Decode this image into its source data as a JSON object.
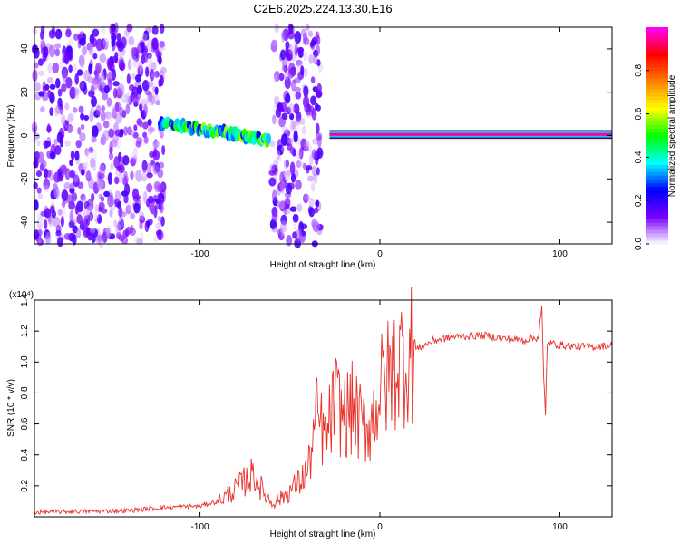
{
  "title": "C2E6.2025.224.13.30.E16",
  "chart_data": [
    {
      "type": "heatmap",
      "xlabel": "Height of straight line (km)",
      "ylabel": "Frequency (Hz)",
      "xlim": [
        -192,
        129
      ],
      "ylim": [
        -50,
        50
      ],
      "x_ticks": [
        -100,
        0,
        100
      ],
      "x_tick_labels": [
        "-100",
        "0",
        "100"
      ],
      "y_ticks": [
        -40,
        -20,
        0,
        20,
        40
      ],
      "y_tick_labels": [
        "-40",
        "-20",
        "0",
        "20",
        "40"
      ],
      "colorbar": {
        "label": "Normalized spectral amplitude",
        "range": [
          0,
          1
        ],
        "ticks": [
          0.0,
          0.2,
          0.4,
          0.6,
          0.8
        ],
        "tick_labels": [
          "0.0",
          "0.2",
          "0.4",
          "0.6",
          "0.8"
        ],
        "colors": [
          "#ffffff",
          "#7a00ff",
          "#0000ff",
          "#00ffff",
          "#00ff00",
          "#ffff00",
          "#ff8000",
          "#ff0000",
          "#ff00ff"
        ]
      },
      "features": [
        {
          "name": "noise",
          "x_range": [
            -192,
            -120
          ],
          "amplitude": 0.1
        },
        {
          "name": "noise",
          "x_range": [
            -60,
            -33
          ],
          "amplitude": 0.1
        },
        {
          "name": "signal band",
          "x_range": [
            -122,
            -62
          ],
          "frequency_start": 6,
          "frequency_end": -2,
          "amplitude": 0.4
        },
        {
          "name": "signal line",
          "x_range": [
            -28,
            129
          ],
          "frequency": 0.5,
          "amplitude": 0.95
        }
      ]
    },
    {
      "type": "line",
      "xlabel": "Height of straight line (km)",
      "ylabel": "SNR (10 * v/v)",
      "y_multiplier": "(x10⁴)",
      "xlim": [
        -192,
        129
      ],
      "ylim": [
        0,
        14000
      ],
      "x_ticks": [
        -100,
        0,
        100
      ],
      "x_tick_labels": [
        "-100",
        "0",
        "100"
      ],
      "y_ticks": [
        2000,
        4000,
        6000,
        8000,
        10000,
        12000,
        14000
      ],
      "y_tick_labels": [
        "0.2",
        "0.4",
        "0.6",
        "0.8",
        "1.0",
        "1.2",
        "1.4"
      ],
      "grid": false,
      "series": [
        {
          "color": "#e8302a",
          "x": [
            -192,
            -140,
            -120,
            -100,
            -90,
            -80,
            -70,
            -65,
            -60,
            -55,
            -45,
            -40,
            -35,
            -30,
            -25,
            -20,
            -15,
            -10,
            -5,
            0,
            10,
            20,
            30,
            40,
            50,
            60,
            70,
            80,
            88,
            90,
            91,
            92,
            93,
            95,
            100,
            110,
            120,
            129
          ],
          "y": [
            300,
            400,
            600,
            700,
            1000,
            1800,
            2800,
            1600,
            900,
            1200,
            2200,
            3000,
            6500,
            5000,
            7500,
            6500,
            7000,
            5800,
            6000,
            8200,
            10000,
            10800,
            11400,
            11600,
            11700,
            11700,
            11500,
            11400,
            11600,
            13500,
            9000,
            6500,
            11300,
            11200,
            11100,
            11000,
            11000,
            11100
          ]
        }
      ]
    }
  ]
}
